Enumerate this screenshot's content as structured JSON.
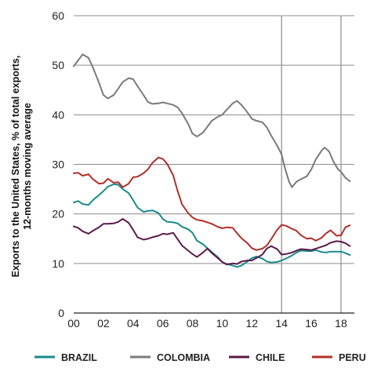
{
  "chart_data": {
    "type": "line",
    "ylabel_line1": "Exports to the United States, % of total exports,",
    "ylabel_line2": "12-months moving average",
    "xlabel": "",
    "ylim": [
      0,
      60
    ],
    "yticks": [
      0,
      10,
      20,
      30,
      40,
      50,
      60
    ],
    "xlim": [
      2000,
      2018.9
    ],
    "xticks": [
      {
        "value": 2000,
        "label": "00"
      },
      {
        "value": 2002,
        "label": "02"
      },
      {
        "value": 2004,
        "label": "04"
      },
      {
        "value": 2006,
        "label": "06"
      },
      {
        "value": 2008,
        "label": "08"
      },
      {
        "value": 2010,
        "label": "10"
      },
      {
        "value": 2012,
        "label": "12"
      },
      {
        "value": 2014,
        "label": "14"
      },
      {
        "value": 2016,
        "label": "16"
      },
      {
        "value": 2018,
        "label": "18"
      }
    ],
    "vertical_markers": [
      2014,
      2018
    ],
    "grid": "horizontal",
    "legend_position": "bottom",
    "series": [
      {
        "name": "BRAZIL",
        "color": "#1a8a8a",
        "points": [
          [
            2000.0,
            22.3
          ],
          [
            2000.3,
            22.6
          ],
          [
            2000.6,
            22.0
          ],
          [
            2001.0,
            21.8
          ],
          [
            2001.3,
            22.8
          ],
          [
            2001.7,
            23.8
          ],
          [
            2002.0,
            24.6
          ],
          [
            2002.3,
            25.5
          ],
          [
            2002.7,
            26.0
          ],
          [
            2003.0,
            25.9
          ],
          [
            2003.3,
            25.0
          ],
          [
            2003.7,
            24.2
          ],
          [
            2004.0,
            22.8
          ],
          [
            2004.3,
            21.3
          ],
          [
            2004.7,
            20.4
          ],
          [
            2005.0,
            20.6
          ],
          [
            2005.3,
            20.7
          ],
          [
            2005.7,
            20.2
          ],
          [
            2006.0,
            19.0
          ],
          [
            2006.3,
            18.4
          ],
          [
            2006.7,
            18.3
          ],
          [
            2007.0,
            18.1
          ],
          [
            2007.3,
            17.4
          ],
          [
            2007.7,
            16.9
          ],
          [
            2008.0,
            16.2
          ],
          [
            2008.3,
            14.6
          ],
          [
            2008.7,
            13.9
          ],
          [
            2009.0,
            13.1
          ],
          [
            2009.3,
            12.3
          ],
          [
            2009.7,
            11.3
          ],
          [
            2010.0,
            10.3
          ],
          [
            2010.3,
            9.9
          ],
          [
            2010.7,
            9.6
          ],
          [
            2011.0,
            9.3
          ],
          [
            2011.3,
            9.6
          ],
          [
            2011.7,
            10.4
          ],
          [
            2012.0,
            11.1
          ],
          [
            2012.3,
            11.4
          ],
          [
            2012.7,
            11.0
          ],
          [
            2013.0,
            10.4
          ],
          [
            2013.3,
            10.2
          ],
          [
            2013.7,
            10.3
          ],
          [
            2014.0,
            10.6
          ],
          [
            2014.3,
            11.0
          ],
          [
            2014.7,
            11.6
          ],
          [
            2015.0,
            12.2
          ],
          [
            2015.3,
            12.6
          ],
          [
            2015.7,
            12.5
          ],
          [
            2016.0,
            12.5
          ],
          [
            2016.3,
            12.7
          ],
          [
            2016.7,
            12.3
          ],
          [
            2017.0,
            12.2
          ],
          [
            2017.3,
            12.4
          ],
          [
            2017.7,
            12.4
          ],
          [
            2018.0,
            12.4
          ],
          [
            2018.3,
            12.1
          ],
          [
            2018.6,
            11.7
          ]
        ]
      },
      {
        "name": "COLOMBIA",
        "color": "#7a7a7a",
        "points": [
          [
            2000.0,
            49.8
          ],
          [
            2000.3,
            51.0
          ],
          [
            2000.6,
            52.2
          ],
          [
            2001.0,
            51.5
          ],
          [
            2001.3,
            49.5
          ],
          [
            2001.7,
            46.5
          ],
          [
            2002.0,
            44.0
          ],
          [
            2002.3,
            43.3
          ],
          [
            2002.7,
            44.0
          ],
          [
            2003.0,
            45.3
          ],
          [
            2003.3,
            46.6
          ],
          [
            2003.7,
            47.4
          ],
          [
            2004.0,
            47.2
          ],
          [
            2004.3,
            45.8
          ],
          [
            2004.7,
            44.0
          ],
          [
            2005.0,
            42.6
          ],
          [
            2005.3,
            42.2
          ],
          [
            2005.7,
            42.3
          ],
          [
            2006.0,
            42.5
          ],
          [
            2006.3,
            42.3
          ],
          [
            2006.7,
            42.0
          ],
          [
            2007.0,
            41.5
          ],
          [
            2007.3,
            40.3
          ],
          [
            2007.7,
            38.2
          ],
          [
            2008.0,
            36.2
          ],
          [
            2008.3,
            35.6
          ],
          [
            2008.7,
            36.4
          ],
          [
            2009.0,
            37.6
          ],
          [
            2009.3,
            38.8
          ],
          [
            2009.7,
            39.6
          ],
          [
            2010.0,
            40.0
          ],
          [
            2010.3,
            41.0
          ],
          [
            2010.7,
            42.3
          ],
          [
            2011.0,
            42.8
          ],
          [
            2011.3,
            42.0
          ],
          [
            2011.7,
            40.5
          ],
          [
            2012.0,
            39.2
          ],
          [
            2012.3,
            38.8
          ],
          [
            2012.7,
            38.5
          ],
          [
            2013.0,
            37.5
          ],
          [
            2013.3,
            35.8
          ],
          [
            2013.7,
            33.8
          ],
          [
            2014.0,
            32.0
          ],
          [
            2014.2,
            29.5
          ],
          [
            2014.5,
            26.5
          ],
          [
            2014.7,
            25.4
          ],
          [
            2015.0,
            26.5
          ],
          [
            2015.3,
            27.0
          ],
          [
            2015.7,
            27.6
          ],
          [
            2016.0,
            29.0
          ],
          [
            2016.3,
            31.0
          ],
          [
            2016.7,
            32.8
          ],
          [
            2016.9,
            33.4
          ],
          [
            2017.2,
            32.6
          ],
          [
            2017.5,
            30.5
          ],
          [
            2017.8,
            29.0
          ],
          [
            2018.0,
            28.5
          ],
          [
            2018.3,
            27.3
          ],
          [
            2018.6,
            26.6
          ]
        ]
      },
      {
        "name": "CHILE",
        "color": "#5c1a4a",
        "points": [
          [
            2000.0,
            17.5
          ],
          [
            2000.3,
            17.2
          ],
          [
            2000.6,
            16.5
          ],
          [
            2001.0,
            16.0
          ],
          [
            2001.3,
            16.6
          ],
          [
            2001.7,
            17.3
          ],
          [
            2002.0,
            18.0
          ],
          [
            2002.3,
            18.0
          ],
          [
            2002.7,
            18.1
          ],
          [
            2003.0,
            18.4
          ],
          [
            2003.3,
            19.0
          ],
          [
            2003.7,
            18.2
          ],
          [
            2004.0,
            16.8
          ],
          [
            2004.3,
            15.3
          ],
          [
            2004.7,
            14.8
          ],
          [
            2005.0,
            15.0
          ],
          [
            2005.3,
            15.3
          ],
          [
            2005.7,
            15.6
          ],
          [
            2006.0,
            16.0
          ],
          [
            2006.3,
            15.9
          ],
          [
            2006.7,
            16.2
          ],
          [
            2007.0,
            14.9
          ],
          [
            2007.3,
            13.6
          ],
          [
            2007.7,
            12.6
          ],
          [
            2008.0,
            11.9
          ],
          [
            2008.3,
            11.3
          ],
          [
            2008.7,
            12.2
          ],
          [
            2009.0,
            13.0
          ],
          [
            2009.3,
            12.1
          ],
          [
            2009.7,
            11.1
          ],
          [
            2010.0,
            10.3
          ],
          [
            2010.3,
            9.8
          ],
          [
            2010.7,
            10.0
          ],
          [
            2011.0,
            9.9
          ],
          [
            2011.3,
            10.4
          ],
          [
            2011.7,
            10.6
          ],
          [
            2012.0,
            10.6
          ],
          [
            2012.3,
            11.1
          ],
          [
            2012.7,
            11.8
          ],
          [
            2013.0,
            13.0
          ],
          [
            2013.3,
            13.5
          ],
          [
            2013.7,
            12.9
          ],
          [
            2014.0,
            11.8
          ],
          [
            2014.3,
            11.9
          ],
          [
            2014.7,
            12.2
          ],
          [
            2015.0,
            12.6
          ],
          [
            2015.3,
            12.9
          ],
          [
            2015.7,
            12.8
          ],
          [
            2016.0,
            12.7
          ],
          [
            2016.3,
            13.0
          ],
          [
            2016.7,
            13.4
          ],
          [
            2017.0,
            13.7
          ],
          [
            2017.3,
            14.2
          ],
          [
            2017.7,
            14.5
          ],
          [
            2018.0,
            14.4
          ],
          [
            2018.3,
            14.1
          ],
          [
            2018.6,
            13.5
          ]
        ]
      },
      {
        "name": "PERU",
        "color": "#b03028",
        "points": [
          [
            2000.0,
            28.2
          ],
          [
            2000.3,
            28.3
          ],
          [
            2000.6,
            27.7
          ],
          [
            2001.0,
            28.0
          ],
          [
            2001.3,
            27.0
          ],
          [
            2001.7,
            26.1
          ],
          [
            2002.0,
            26.2
          ],
          [
            2002.3,
            27.1
          ],
          [
            2002.7,
            26.3
          ],
          [
            2003.0,
            26.4
          ],
          [
            2003.3,
            25.4
          ],
          [
            2003.7,
            26.1
          ],
          [
            2004.0,
            27.4
          ],
          [
            2004.3,
            27.5
          ],
          [
            2004.7,
            28.2
          ],
          [
            2005.0,
            29.0
          ],
          [
            2005.3,
            30.3
          ],
          [
            2005.7,
            31.4
          ],
          [
            2006.0,
            31.1
          ],
          [
            2006.3,
            30.1
          ],
          [
            2006.7,
            27.8
          ],
          [
            2007.0,
            24.6
          ],
          [
            2007.3,
            21.9
          ],
          [
            2007.7,
            20.2
          ],
          [
            2008.0,
            19.3
          ],
          [
            2008.3,
            18.8
          ],
          [
            2008.7,
            18.6
          ],
          [
            2009.0,
            18.3
          ],
          [
            2009.3,
            18.0
          ],
          [
            2009.7,
            17.4
          ],
          [
            2010.0,
            17.1
          ],
          [
            2010.3,
            17.3
          ],
          [
            2010.7,
            17.2
          ],
          [
            2011.0,
            16.1
          ],
          [
            2011.3,
            15.1
          ],
          [
            2011.7,
            14.1
          ],
          [
            2012.0,
            13.1
          ],
          [
            2012.3,
            12.7
          ],
          [
            2012.7,
            13.0
          ],
          [
            2013.0,
            13.6
          ],
          [
            2013.3,
            14.9
          ],
          [
            2013.7,
            16.8
          ],
          [
            2014.0,
            17.8
          ],
          [
            2014.3,
            17.6
          ],
          [
            2014.7,
            17.0
          ],
          [
            2015.0,
            16.6
          ],
          [
            2015.3,
            15.7
          ],
          [
            2015.7,
            15.0
          ],
          [
            2016.0,
            15.1
          ],
          [
            2016.3,
            14.6
          ],
          [
            2016.7,
            15.2
          ],
          [
            2017.0,
            16.1
          ],
          [
            2017.3,
            16.7
          ],
          [
            2017.7,
            15.6
          ],
          [
            2018.0,
            15.7
          ],
          [
            2018.3,
            17.3
          ],
          [
            2018.6,
            17.7
          ]
        ]
      }
    ]
  }
}
